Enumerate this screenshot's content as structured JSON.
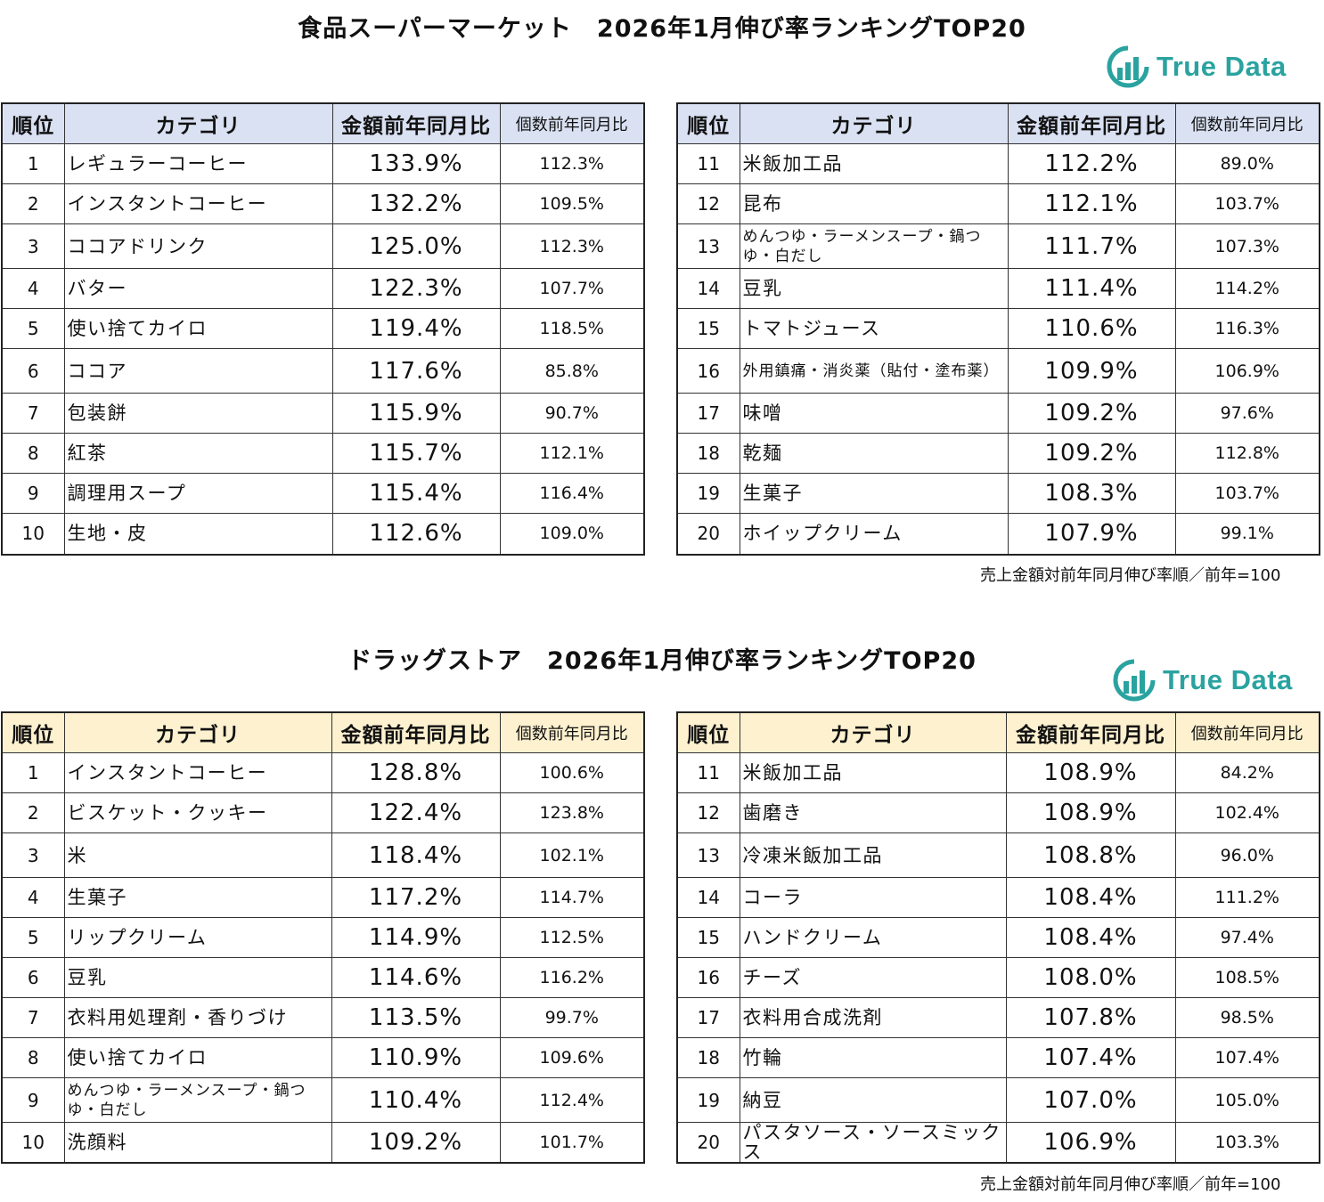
{
  "colors": {
    "header_blue": "#d9e1f2",
    "header_yellow": "#fdf1cf",
    "logo_teal": "#2aa3a0"
  },
  "logo_text": "True Data",
  "table_headers": {
    "rank": "順位",
    "category": "カテゴリ",
    "amount": "金額前年同月比",
    "quantity": "個数前年同月比"
  },
  "note": "売上金額対前年同月伸び率順／前年=100",
  "supermarket": {
    "title": "食品スーパーマーケット　2026年1月伸び率ランキングTOP20",
    "left": [
      {
        "rank": "1",
        "category": "レギュラーコーヒー",
        "amount": "133.9%",
        "quantity": "112.3%"
      },
      {
        "rank": "2",
        "category": "インスタントコーヒー",
        "amount": "132.2%",
        "quantity": "109.5%"
      },
      {
        "rank": "3",
        "category": "ココアドリンク",
        "amount": "125.0%",
        "quantity": "112.3%"
      },
      {
        "rank": "4",
        "category": "バター",
        "amount": "122.3%",
        "quantity": "107.7%"
      },
      {
        "rank": "5",
        "category": "使い捨てカイロ",
        "amount": "119.4%",
        "quantity": "118.5%"
      },
      {
        "rank": "6",
        "category": "ココア",
        "amount": "117.6%",
        "quantity": "85.8%"
      },
      {
        "rank": "7",
        "category": "包装餅",
        "amount": "115.9%",
        "quantity": "90.7%"
      },
      {
        "rank": "8",
        "category": "紅茶",
        "amount": "115.7%",
        "quantity": "112.1%"
      },
      {
        "rank": "9",
        "category": "調理用スープ",
        "amount": "115.4%",
        "quantity": "116.4%"
      },
      {
        "rank": "10",
        "category": "生地・皮",
        "amount": "112.6%",
        "quantity": "109.0%"
      }
    ],
    "right": [
      {
        "rank": "11",
        "category": "米飯加工品",
        "amount": "112.2%",
        "quantity": "89.0%"
      },
      {
        "rank": "12",
        "category": "昆布",
        "amount": "112.1%",
        "quantity": "103.7%"
      },
      {
        "rank": "13",
        "category": "めんつゆ・ラーメンスープ・鍋つゆ・白だし",
        "amount": "111.7%",
        "quantity": "107.3%"
      },
      {
        "rank": "14",
        "category": "豆乳",
        "amount": "111.4%",
        "quantity": "114.2%"
      },
      {
        "rank": "15",
        "category": "トマトジュース",
        "amount": "110.6%",
        "quantity": "116.3%"
      },
      {
        "rank": "16",
        "category": "外用鎮痛・消炎薬（貼付・塗布薬）",
        "amount": "109.9%",
        "quantity": "106.9%"
      },
      {
        "rank": "17",
        "category": "味噌",
        "amount": "109.2%",
        "quantity": "97.6%"
      },
      {
        "rank": "18",
        "category": "乾麺",
        "amount": "109.2%",
        "quantity": "112.8%"
      },
      {
        "rank": "19",
        "category": "生菓子",
        "amount": "108.3%",
        "quantity": "103.7%"
      },
      {
        "rank": "20",
        "category": "ホイップクリーム",
        "amount": "107.9%",
        "quantity": "99.1%"
      }
    ]
  },
  "drugstore": {
    "title": "ドラッグストア　2026年1月伸び率ランキングTOP20",
    "left": [
      {
        "rank": "1",
        "category": "インスタントコーヒー",
        "amount": "128.8%",
        "quantity": "100.6%"
      },
      {
        "rank": "2",
        "category": "ビスケット・クッキー",
        "amount": "122.4%",
        "quantity": "123.8%"
      },
      {
        "rank": "3",
        "category": "米",
        "amount": "118.4%",
        "quantity": "102.1%"
      },
      {
        "rank": "4",
        "category": "生菓子",
        "amount": "117.2%",
        "quantity": "114.7%"
      },
      {
        "rank": "5",
        "category": "リップクリーム",
        "amount": "114.9%",
        "quantity": "112.5%"
      },
      {
        "rank": "6",
        "category": "豆乳",
        "amount": "114.6%",
        "quantity": "116.2%"
      },
      {
        "rank": "7",
        "category": "衣料用処理剤・香りづけ",
        "amount": "113.5%",
        "quantity": "99.7%"
      },
      {
        "rank": "8",
        "category": "使い捨てカイロ",
        "amount": "110.9%",
        "quantity": "109.6%"
      },
      {
        "rank": "9",
        "category": "めんつゆ・ラーメンスープ・鍋つゆ・白だし",
        "amount": "110.4%",
        "quantity": "112.4%"
      },
      {
        "rank": "10",
        "category": "洗顔料",
        "amount": "109.2%",
        "quantity": "101.7%"
      }
    ],
    "right": [
      {
        "rank": "11",
        "category": "米飯加工品",
        "amount": "108.9%",
        "quantity": "84.2%"
      },
      {
        "rank": "12",
        "category": "歯磨き",
        "amount": "108.9%",
        "quantity": "102.4%"
      },
      {
        "rank": "13",
        "category": "冷凍米飯加工品",
        "amount": "108.8%",
        "quantity": "96.0%"
      },
      {
        "rank": "14",
        "category": "コーラ",
        "amount": "108.4%",
        "quantity": "111.2%"
      },
      {
        "rank": "15",
        "category": "ハンドクリーム",
        "amount": "108.4%",
        "quantity": "97.4%"
      },
      {
        "rank": "16",
        "category": "チーズ",
        "amount": "108.0%",
        "quantity": "108.5%"
      },
      {
        "rank": "17",
        "category": "衣料用合成洗剤",
        "amount": "107.8%",
        "quantity": "98.5%"
      },
      {
        "rank": "18",
        "category": "竹輪",
        "amount": "107.4%",
        "quantity": "107.4%"
      },
      {
        "rank": "19",
        "category": "納豆",
        "amount": "107.0%",
        "quantity": "105.0%"
      },
      {
        "rank": "20",
        "category": "パスタソース・ソースミックス",
        "amount": "106.9%",
        "quantity": "103.3%"
      }
    ]
  }
}
